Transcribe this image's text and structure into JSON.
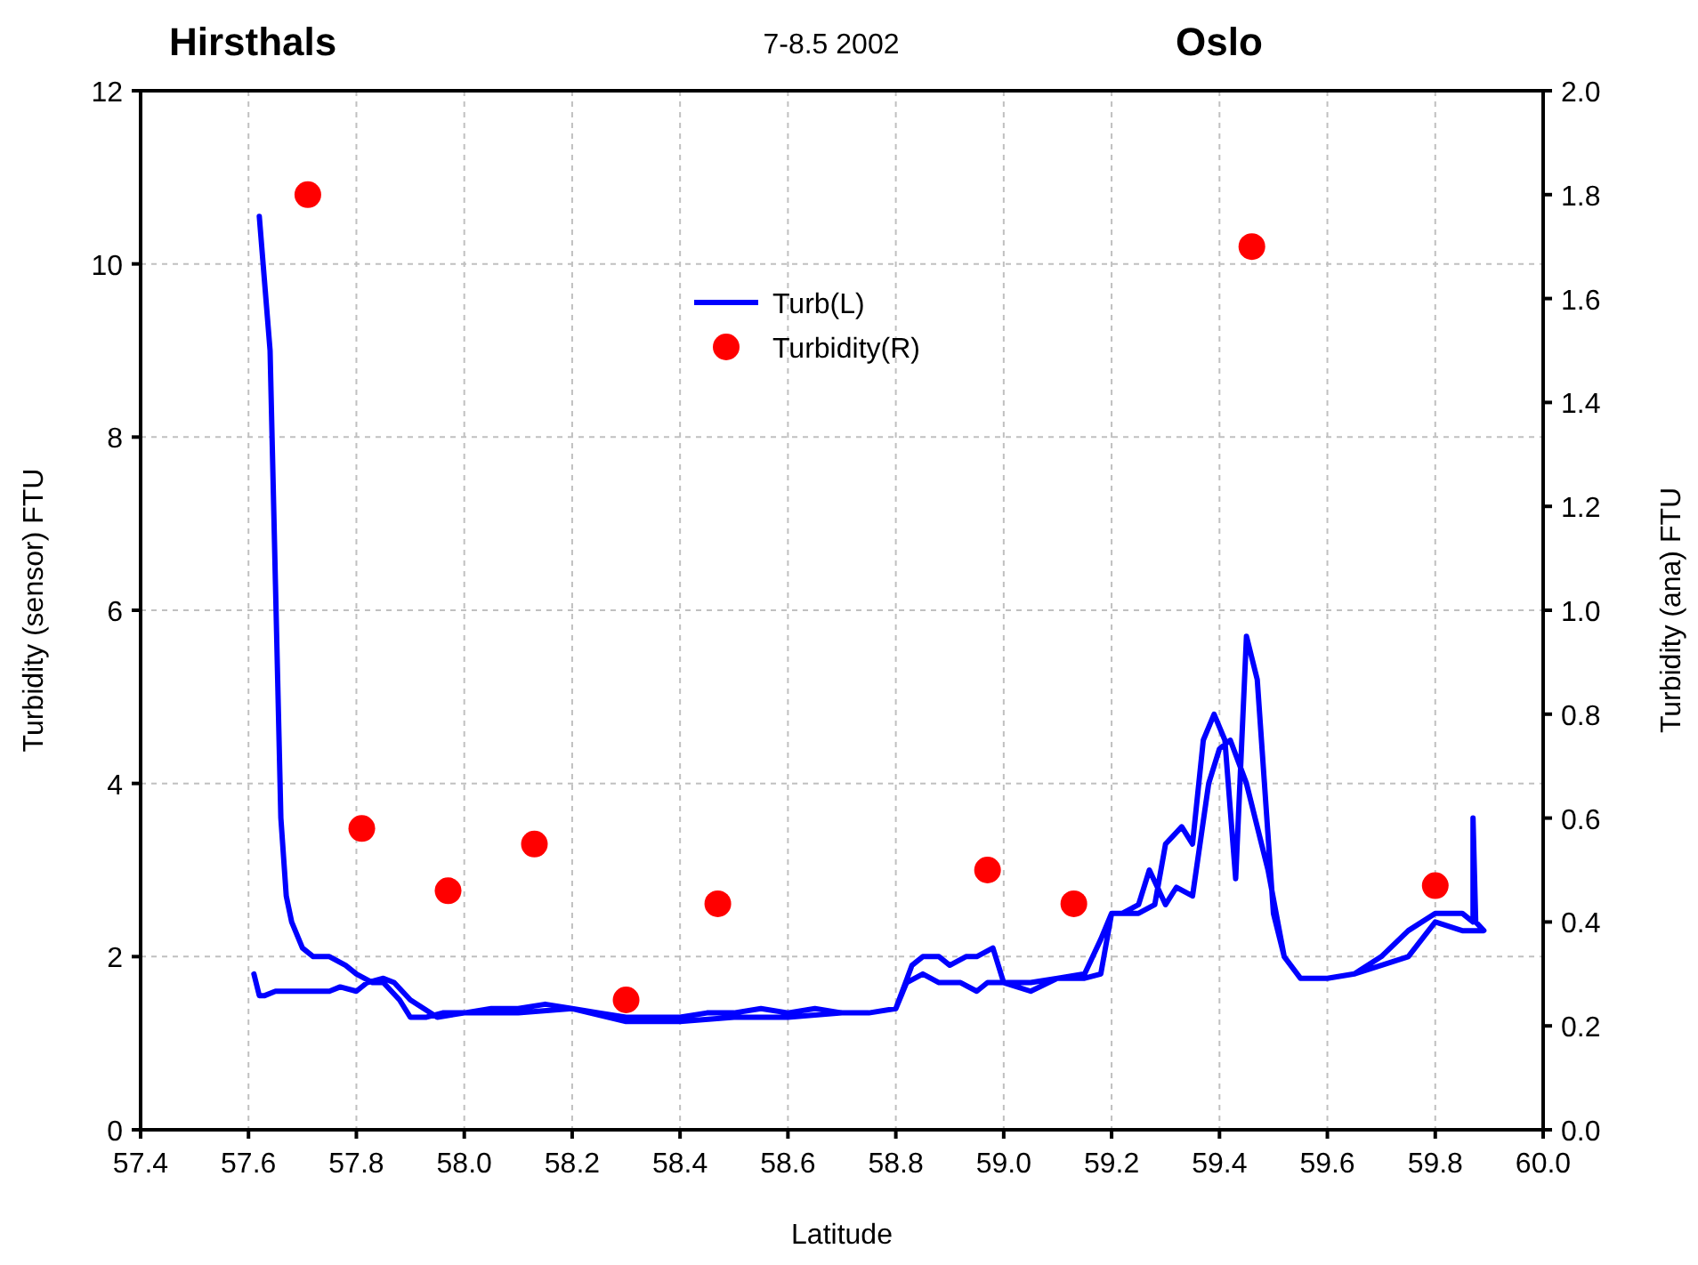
{
  "chart_data": {
    "type": "line",
    "title": "7-8.5 2002",
    "annotations": [
      "Hirsthals",
      "Oslo"
    ],
    "xlabel": "Latitude",
    "ylabel": "Turbidity (sensor) FTU",
    "y2label": "Turbidity (ana) FTU",
    "xlim": [
      57.4,
      60.0
    ],
    "xticks": [
      57.4,
      57.6,
      57.8,
      {
        "value": 58.0,
        "label": "58.0"
      },
      58.2,
      58.4,
      58.6,
      58.8,
      {
        "value": 59.0,
        "label": "59.0"
      },
      59.2,
      59.4,
      59.6,
      59.8,
      {
        "value": 60.0,
        "label": "60.0"
      }
    ],
    "ylim": [
      0,
      12
    ],
    "yticks": [
      0,
      2,
      4,
      6,
      8,
      10,
      12
    ],
    "y2lim": [
      0,
      2
    ],
    "y2ticks": [
      {
        "value": 0,
        "label": "0.0"
      },
      0.2,
      0.4,
      0.6,
      0.8,
      {
        "value": 1,
        "label": "1.0"
      },
      1.2,
      1.4,
      1.6,
      1.8,
      {
        "value": 2,
        "label": "2.0"
      }
    ],
    "grid": true,
    "legend": "top",
    "line_style": "solid",
    "series": [
      {
        "name": "Turb(L)",
        "color": "#0000ff",
        "x": [
          57.62,
          57.64,
          57.65,
          57.66,
          57.67,
          57.68,
          57.7,
          57.72,
          57.75,
          57.78,
          57.8,
          57.83,
          57.85,
          57.88,
          57.9,
          57.93,
          57.96,
          58.0,
          58.05,
          58.1,
          58.15,
          58.2,
          58.25,
          58.3,
          58.35,
          58.4,
          58.45,
          58.5,
          58.55,
          58.6,
          58.65,
          58.7,
          58.75,
          58.8,
          58.83,
          58.85,
          58.88,
          58.9,
          58.93,
          58.95,
          58.98,
          59.0,
          59.05,
          59.1,
          59.15,
          59.18,
          59.2,
          59.25,
          59.28,
          59.3,
          59.33,
          59.35,
          59.37,
          59.39,
          59.41,
          59.43,
          59.45,
          59.47,
          59.5,
          59.52,
          59.55,
          59.6,
          59.65,
          59.7,
          59.75,
          59.8,
          59.85,
          59.87,
          59.87,
          59.875,
          59.89,
          59.85,
          59.8,
          59.75,
          59.7,
          59.65,
          59.6,
          59.55,
          59.52,
          59.49,
          59.45,
          59.42,
          59.4,
          59.38,
          59.35,
          59.32,
          59.3,
          59.27,
          59.25,
          59.22,
          59.2,
          59.18,
          59.15,
          59.1,
          59.05,
          59.0,
          58.97,
          58.95,
          58.92,
          58.88,
          58.85,
          58.82,
          58.8,
          58.75,
          58.7,
          58.6,
          58.5,
          58.4,
          58.3,
          58.2,
          58.1,
          58.0,
          57.95,
          57.9,
          57.87,
          57.85,
          57.82,
          57.8,
          57.77,
          57.75,
          57.72,
          57.7,
          57.67,
          57.65,
          57.63,
          57.62,
          57.61
        ],
        "values": [
          10.55,
          9.0,
          6.3,
          3.6,
          2.7,
          2.4,
          2.1,
          2.0,
          2.0,
          1.9,
          1.8,
          1.7,
          1.7,
          1.5,
          1.3,
          1.3,
          1.35,
          1.35,
          1.4,
          1.4,
          1.45,
          1.4,
          1.35,
          1.3,
          1.3,
          1.3,
          1.35,
          1.35,
          1.4,
          1.35,
          1.4,
          1.35,
          1.35,
          1.4,
          1.9,
          2.0,
          2.0,
          1.9,
          2.0,
          2.0,
          2.1,
          1.7,
          1.7,
          1.75,
          1.8,
          2.2,
          2.5,
          2.5,
          2.6,
          3.3,
          3.5,
          3.3,
          4.5,
          4.8,
          4.5,
          2.9,
          5.7,
          5.2,
          2.5,
          2.0,
          1.75,
          1.75,
          1.8,
          2.0,
          2.3,
          2.5,
          2.5,
          2.4,
          3.6,
          2.4,
          2.3,
          2.3,
          2.4,
          2.0,
          1.9,
          1.8,
          1.75,
          1.75,
          2.0,
          3.0,
          4.0,
          4.5,
          4.4,
          4.0,
          2.7,
          2.8,
          2.6,
          3.0,
          2.6,
          2.5,
          2.5,
          1.8,
          1.75,
          1.75,
          1.6,
          1.7,
          1.7,
          1.6,
          1.7,
          1.7,
          1.8,
          1.7,
          1.4,
          1.35,
          1.35,
          1.3,
          1.3,
          1.25,
          1.25,
          1.4,
          1.35,
          1.35,
          1.3,
          1.5,
          1.7,
          1.75,
          1.7,
          1.6,
          1.65,
          1.6,
          1.6,
          1.6,
          1.6,
          1.6,
          1.55,
          1.55,
          1.8
        ]
      },
      {
        "name": "Turbidity(R)",
        "type": "scatter",
        "axis": "y2",
        "color": "#ff0000",
        "marker": "circle",
        "x": [
          57.71,
          57.81,
          57.97,
          58.13,
          58.3,
          58.47,
          58.97,
          59.13,
          59.46,
          59.8
        ],
        "values": [
          1.8,
          0.58,
          0.46,
          0.55,
          0.25,
          0.435,
          0.5,
          0.435,
          1.7,
          0.47
        ]
      }
    ]
  }
}
